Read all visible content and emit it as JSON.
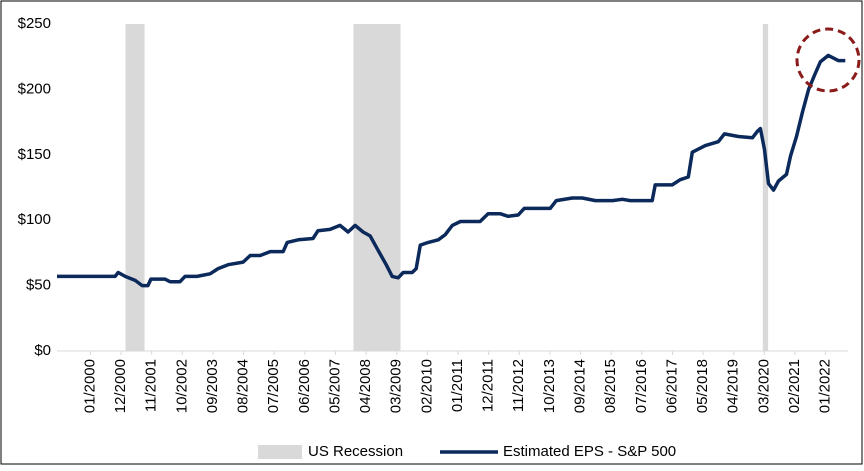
{
  "chart_data": {
    "type": "line",
    "xlim": [
      1999,
      2022.67
    ],
    "xticks": [
      {
        "value": 2000.0,
        "label": "01/2000"
      },
      {
        "value": 2000.917,
        "label": "12/2000"
      },
      {
        "value": 2001.833,
        "label": "11/2001"
      },
      {
        "value": 2002.75,
        "label": "10/2002"
      },
      {
        "value": 2003.667,
        "label": "09/2003"
      },
      {
        "value": 2004.583,
        "label": "08/2004"
      },
      {
        "value": 2005.5,
        "label": "07/2005"
      },
      {
        "value": 2006.417,
        "label": "06/2006"
      },
      {
        "value": 2007.333,
        "label": "05/2007"
      },
      {
        "value": 2008.25,
        "label": "04/2008"
      },
      {
        "value": 2009.167,
        "label": "03/2009"
      },
      {
        "value": 2010.083,
        "label": "02/2010"
      },
      {
        "value": 2011.0,
        "label": "01/2011"
      },
      {
        "value": 2011.917,
        "label": "12/2011"
      },
      {
        "value": 2012.833,
        "label": "11/2012"
      },
      {
        "value": 2013.75,
        "label": "10/2013"
      },
      {
        "value": 2014.667,
        "label": "09/2014"
      },
      {
        "value": 2015.583,
        "label": "08/2015"
      },
      {
        "value": 2016.5,
        "label": "07/2016"
      },
      {
        "value": 2017.417,
        "label": "06/2017"
      },
      {
        "value": 2018.333,
        "label": "05/2018"
      },
      {
        "value": 2019.25,
        "label": "04/2019"
      },
      {
        "value": 2020.167,
        "label": "03/2020"
      },
      {
        "value": 2021.083,
        "label": "02/2021"
      },
      {
        "value": 2022.0,
        "label": "01/2022"
      }
    ],
    "ylim": [
      0,
      250
    ],
    "yticks": [
      {
        "value": 0,
        "label": "$0"
      },
      {
        "value": 50,
        "label": "$50"
      },
      {
        "value": 100,
        "label": "$100"
      },
      {
        "value": 150,
        "label": "$150"
      },
      {
        "value": 200,
        "label": "$200"
      },
      {
        "value": 250,
        "label": "$250"
      }
    ],
    "grid": false,
    "legend": "bottom",
    "series": [
      {
        "name": "US Recession",
        "type": "span",
        "color": "#d9d9d9",
        "periods": [
          [
            2001.05,
            2001.62
          ],
          [
            2007.87,
            2009.28
          ],
          [
            2020.12,
            2020.28
          ]
        ]
      },
      {
        "name": "Estimated EPS - S&P 500",
        "color": "#0b2a5b",
        "x": [
          1999.0,
          2000.74,
          2000.83,
          2001.04,
          2001.34,
          2001.55,
          2001.72,
          2001.81,
          2002.23,
          2002.38,
          2002.68,
          2002.83,
          2003.19,
          2003.58,
          2003.82,
          2004.12,
          2004.57,
          2004.78,
          2005.08,
          2005.38,
          2005.77,
          2005.89,
          2006.22,
          2006.66,
          2006.81,
          2007.17,
          2007.47,
          2007.71,
          2007.92,
          2008.16,
          2008.37,
          2008.61,
          2008.85,
          2009.03,
          2009.21,
          2009.36,
          2009.63,
          2009.75,
          2009.87,
          2010.11,
          2010.41,
          2010.62,
          2010.83,
          2011.07,
          2011.37,
          2011.66,
          2011.9,
          2012.26,
          2012.5,
          2012.8,
          2012.98,
          2013.46,
          2013.76,
          2013.94,
          2014.42,
          2014.72,
          2015.11,
          2015.62,
          2015.92,
          2016.16,
          2016.81,
          2016.9,
          2017.41,
          2017.65,
          2017.89,
          2018.01,
          2018.4,
          2018.79,
          2018.97,
          2019.39,
          2019.81,
          2019.96,
          2020.05,
          2020.17,
          2020.29,
          2020.44,
          2020.59,
          2020.83,
          2020.95,
          2021.13,
          2021.31,
          2021.49,
          2021.67,
          2021.84,
          2022.08,
          2022.38,
          2022.59
        ],
        "values": [
          57,
          57,
          60,
          57,
          54,
          50,
          50,
          55,
          55,
          53,
          53,
          57,
          57,
          59,
          63,
          66,
          68,
          73,
          73,
          76,
          76,
          83,
          85,
          86,
          92,
          93,
          96,
          91,
          96,
          91,
          88,
          77,
          66,
          57,
          56,
          60,
          60,
          63,
          81,
          83,
          85,
          89,
          96,
          99,
          99,
          99,
          105,
          105,
          103,
          104,
          109,
          109,
          109,
          115,
          117,
          117,
          115,
          115,
          116,
          115,
          115,
          127,
          127,
          131,
          133,
          152,
          157,
          160,
          166,
          164,
          163,
          168,
          170,
          154,
          128,
          123,
          130,
          135,
          149,
          164,
          183,
          200,
          211,
          221,
          226,
          222,
          222
        ]
      }
    ]
  }
}
